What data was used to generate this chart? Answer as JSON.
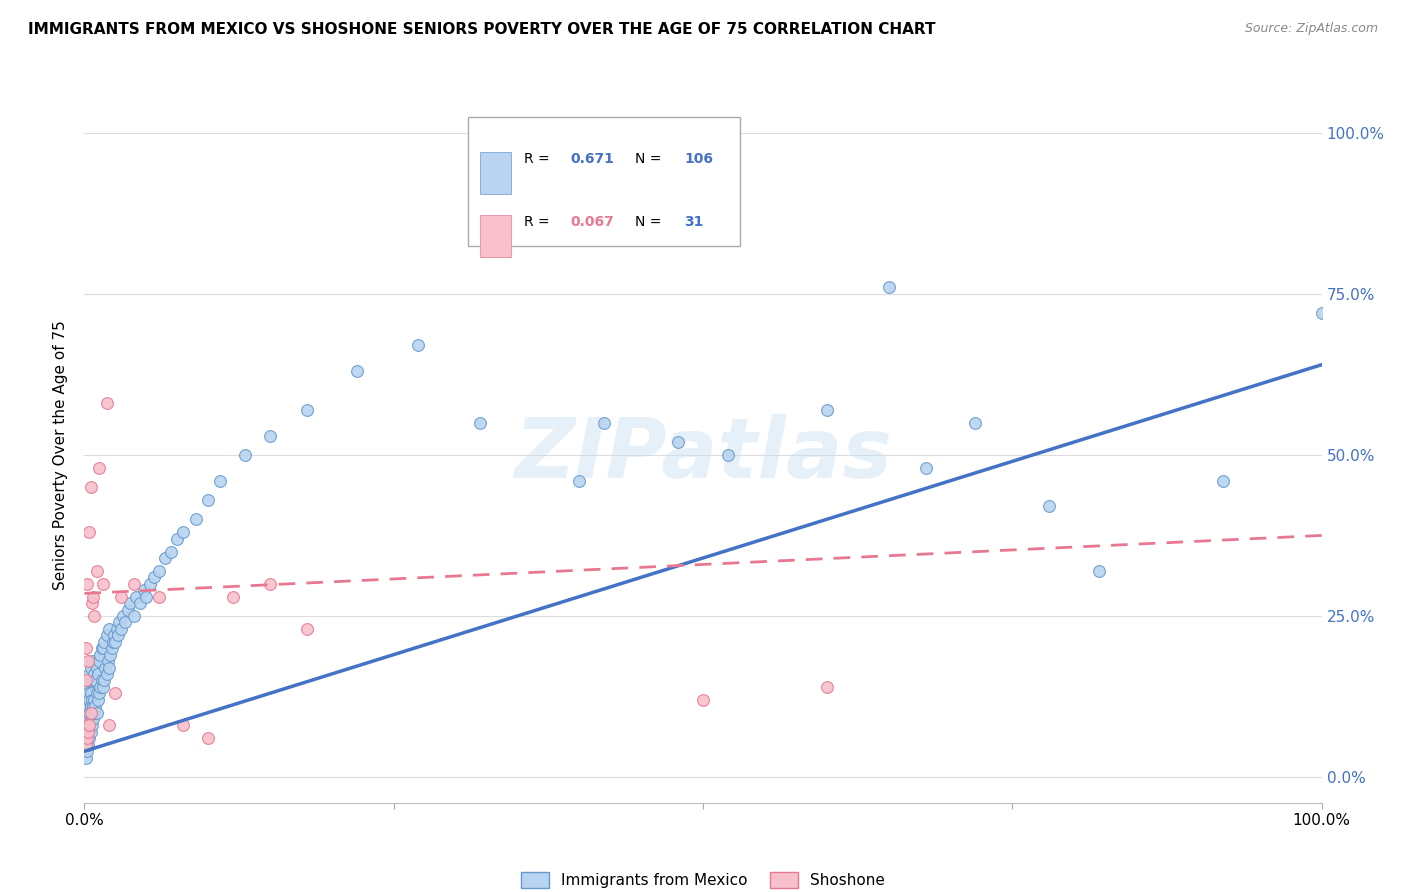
{
  "title": "IMMIGRANTS FROM MEXICO VS SHOSHONE SENIORS POVERTY OVER THE AGE OF 75 CORRELATION CHART",
  "source": "Source: ZipAtlas.com",
  "ylabel": "Seniors Poverty Over the Age of 75",
  "ytick_labels": [
    "0.0%",
    "25.0%",
    "50.0%",
    "75.0%",
    "100.0%"
  ],
  "ytick_values": [
    0.0,
    0.25,
    0.5,
    0.75,
    1.0
  ],
  "xlim": [
    0.0,
    1.0
  ],
  "ylim": [
    -0.04,
    1.04
  ],
  "legend_R_blue": "0.671",
  "legend_N_blue": "106",
  "legend_R_pink": "0.067",
  "legend_N_pink": "31",
  "blue_marker_face": "#b8d4f0",
  "blue_marker_edge": "#6699cc",
  "pink_marker_face": "#f8c0cc",
  "pink_marker_edge": "#e87890",
  "blue_line_color": "#4472c4",
  "pink_line_color": "#e87890",
  "watermark_text": "ZIPatlas",
  "blue_line_y0": 0.04,
  "blue_line_y1": 0.64,
  "pink_line_y0": 0.285,
  "pink_line_y1": 0.375,
  "blue_scatter_x": [
    0.001,
    0.001,
    0.001,
    0.001,
    0.001,
    0.002,
    0.002,
    0.002,
    0.002,
    0.002,
    0.002,
    0.003,
    0.003,
    0.003,
    0.003,
    0.003,
    0.003,
    0.004,
    0.004,
    0.004,
    0.004,
    0.004,
    0.005,
    0.005,
    0.005,
    0.005,
    0.005,
    0.006,
    0.006,
    0.006,
    0.006,
    0.007,
    0.007,
    0.007,
    0.008,
    0.008,
    0.008,
    0.009,
    0.009,
    0.01,
    0.01,
    0.01,
    0.011,
    0.011,
    0.012,
    0.012,
    0.013,
    0.013,
    0.014,
    0.014,
    0.015,
    0.015,
    0.016,
    0.016,
    0.017,
    0.018,
    0.018,
    0.019,
    0.02,
    0.02,
    0.021,
    0.022,
    0.023,
    0.024,
    0.025,
    0.026,
    0.027,
    0.028,
    0.03,
    0.031,
    0.033,
    0.035,
    0.037,
    0.04,
    0.042,
    0.045,
    0.048,
    0.05,
    0.053,
    0.056,
    0.06,
    0.065,
    0.07,
    0.075,
    0.08,
    0.09,
    0.1,
    0.11,
    0.13,
    0.15,
    0.18,
    0.22,
    0.27,
    0.32,
    0.4,
    0.42,
    0.48,
    0.52,
    0.6,
    0.65,
    0.68,
    0.72,
    0.78,
    0.82,
    0.92,
    1.0
  ],
  "blue_scatter_y": [
    0.03,
    0.05,
    0.07,
    0.09,
    0.11,
    0.04,
    0.06,
    0.08,
    0.1,
    0.12,
    0.14,
    0.05,
    0.07,
    0.09,
    0.11,
    0.13,
    0.15,
    0.06,
    0.08,
    0.1,
    0.12,
    0.16,
    0.07,
    0.09,
    0.11,
    0.13,
    0.17,
    0.08,
    0.1,
    0.12,
    0.18,
    0.09,
    0.11,
    0.15,
    0.1,
    0.12,
    0.16,
    0.11,
    0.15,
    0.1,
    0.13,
    0.17,
    0.12,
    0.16,
    0.13,
    0.18,
    0.14,
    0.19,
    0.15,
    0.2,
    0.14,
    0.2,
    0.15,
    0.21,
    0.17,
    0.16,
    0.22,
    0.18,
    0.17,
    0.23,
    0.19,
    0.2,
    0.21,
    0.22,
    0.21,
    0.23,
    0.22,
    0.24,
    0.23,
    0.25,
    0.24,
    0.26,
    0.27,
    0.25,
    0.28,
    0.27,
    0.29,
    0.28,
    0.3,
    0.31,
    0.32,
    0.34,
    0.35,
    0.37,
    0.38,
    0.4,
    0.43,
    0.46,
    0.5,
    0.53,
    0.57,
    0.63,
    0.67,
    0.55,
    0.46,
    0.55,
    0.52,
    0.5,
    0.57,
    0.76,
    0.48,
    0.55,
    0.42,
    0.32,
    0.46,
    0.72
  ],
  "pink_scatter_x": [
    0.001,
    0.001,
    0.001,
    0.001,
    0.002,
    0.002,
    0.003,
    0.003,
    0.004,
    0.004,
    0.005,
    0.005,
    0.006,
    0.007,
    0.008,
    0.01,
    0.012,
    0.015,
    0.018,
    0.02,
    0.025,
    0.03,
    0.04,
    0.06,
    0.08,
    0.1,
    0.12,
    0.15,
    0.18,
    0.5,
    0.6
  ],
  "pink_scatter_y": [
    0.05,
    0.08,
    0.15,
    0.2,
    0.06,
    0.3,
    0.07,
    0.18,
    0.08,
    0.38,
    0.1,
    0.45,
    0.27,
    0.28,
    0.25,
    0.32,
    0.48,
    0.3,
    0.58,
    0.08,
    0.13,
    0.28,
    0.3,
    0.28,
    0.08,
    0.06,
    0.28,
    0.3,
    0.23,
    0.12,
    0.14
  ]
}
